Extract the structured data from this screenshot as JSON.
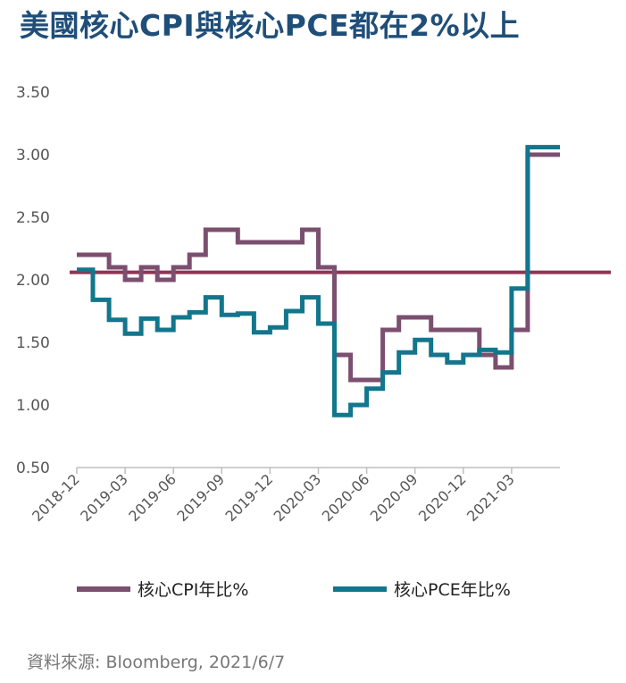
{
  "title": "美國核心CPI與核心PCE都在2%以上",
  "source": "資料來源: Bloomberg, 2021/6/7",
  "colors": {
    "cpi": "#7b4f6f",
    "pce": "#12768c",
    "ref": "#8e3553",
    "axis": "#bfbfbf",
    "title": "#1f4e79"
  },
  "chart_data": {
    "type": "line",
    "step": true,
    "yticks": [
      "3.50",
      "3.00",
      "2.50",
      "2.00",
      "1.50",
      "1.00",
      "0.50"
    ],
    "ylim": [
      0.5,
      3.5
    ],
    "xticks": [
      "2018-12",
      "2019-03",
      "2019-06",
      "2019-09",
      "2019-12",
      "2020-03",
      "2020-06",
      "2020-09",
      "2020-12",
      "2021-03"
    ],
    "x": [
      "2018-12",
      "2019-01",
      "2019-02",
      "2019-03",
      "2019-04",
      "2019-05",
      "2019-06",
      "2019-07",
      "2019-08",
      "2019-09",
      "2019-10",
      "2019-11",
      "2019-12",
      "2020-01",
      "2020-02",
      "2020-03",
      "2020-04",
      "2020-05",
      "2020-06",
      "2020-07",
      "2020-08",
      "2020-09",
      "2020-10",
      "2020-11",
      "2020-12",
      "2021-01",
      "2021-02",
      "2021-03",
      "2021-04",
      "2021-05"
    ],
    "series": [
      {
        "name": "核心CPI年比%",
        "values": [
          2.2,
          2.2,
          2.1,
          2.0,
          2.1,
          2.0,
          2.1,
          2.2,
          2.4,
          2.4,
          2.3,
          2.3,
          2.3,
          2.3,
          2.4,
          2.1,
          1.4,
          1.2,
          1.2,
          1.6,
          1.7,
          1.7,
          1.6,
          1.6,
          1.6,
          1.4,
          1.3,
          1.6,
          3.0,
          3.0
        ]
      },
      {
        "name": "核心PCE年比%",
        "values": [
          2.08,
          1.84,
          1.68,
          1.57,
          1.69,
          1.6,
          1.7,
          1.74,
          1.86,
          1.72,
          1.73,
          1.58,
          1.62,
          1.75,
          1.86,
          1.65,
          0.92,
          1.0,
          1.13,
          1.26,
          1.42,
          1.52,
          1.4,
          1.34,
          1.4,
          1.44,
          1.42,
          1.93,
          3.06,
          3.06
        ]
      }
    ],
    "reference_line": 2.06,
    "legend": "bottom",
    "grid": false
  }
}
